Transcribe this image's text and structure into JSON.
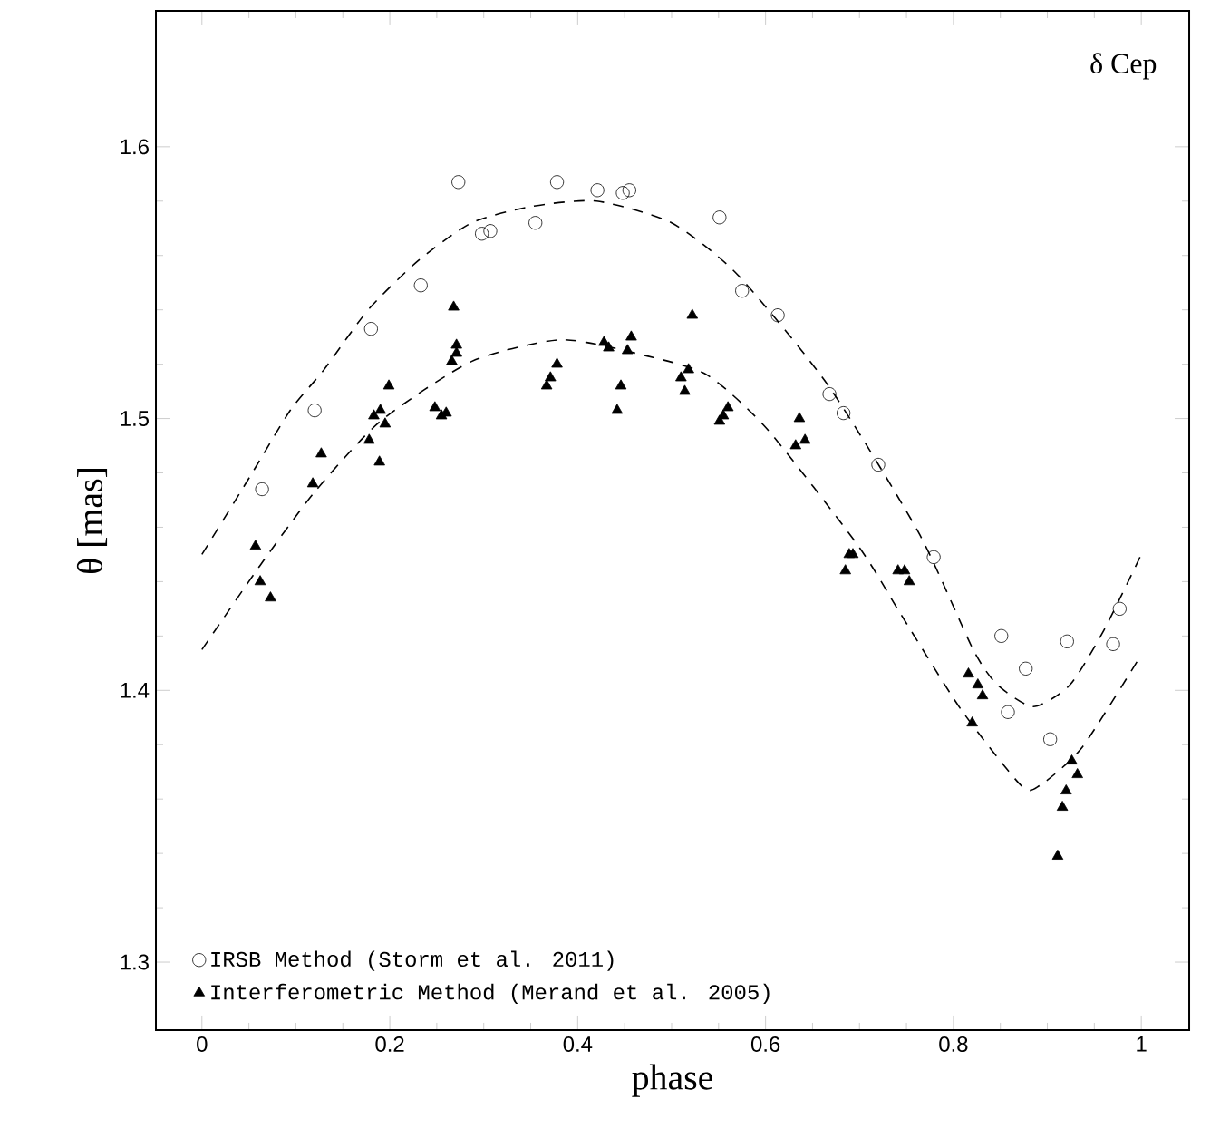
{
  "chart_data": {
    "type": "scatter",
    "xlabel": "phase",
    "ylabel": "θ [mas]",
    "annotations": [
      "δ Cep"
    ],
    "xlim": [
      -0.049,
      1.051
    ],
    "ylim": [
      1.275,
      1.65
    ],
    "xticks": [
      0,
      0.2,
      0.4,
      0.6,
      0.8,
      1
    ],
    "yticks": [
      1.3,
      1.4,
      1.5,
      1.6
    ],
    "legend": "bottom left",
    "series": [
      {
        "name": "IRSB Method (Storm et al. 2011)",
        "marker": "circle",
        "color": "#000000",
        "x": [
          0.064,
          0.12,
          0.18,
          0.233,
          0.273,
          0.298,
          0.307,
          0.355,
          0.378,
          0.421,
          0.448,
          0.455,
          0.551,
          0.575,
          0.613,
          0.668,
          0.683,
          0.72,
          0.779,
          0.851,
          0.877,
          0.858,
          0.903,
          0.921,
          0.97,
          0.977
        ],
        "values": [
          1.474,
          1.503,
          1.533,
          1.549,
          1.587,
          1.568,
          1.569,
          1.572,
          1.587,
          1.584,
          1.583,
          1.584,
          1.574,
          1.547,
          1.538,
          1.509,
          1.502,
          1.483,
          1.449,
          1.42,
          1.408,
          1.392,
          1.382,
          1.418,
          1.417,
          1.43
        ]
      },
      {
        "name": "Interferometric Method (Merand et al. 2005)",
        "marker": "triangle",
        "color": "#000000",
        "x": [
          0.057,
          0.062,
          0.073,
          0.118,
          0.127,
          0.178,
          0.189,
          0.183,
          0.19,
          0.195,
          0.199,
          0.248,
          0.255,
          0.26,
          0.268,
          0.271,
          0.271,
          0.266,
          0.367,
          0.371,
          0.378,
          0.428,
          0.433,
          0.446,
          0.442,
          0.453,
          0.457,
          0.522,
          0.518,
          0.51,
          0.514,
          0.56,
          0.555,
          0.551,
          0.636,
          0.642,
          0.632,
          0.693,
          0.689,
          0.685,
          0.741,
          0.748,
          0.753,
          0.816,
          0.826,
          0.831,
          0.82,
          0.926,
          0.932,
          0.92,
          0.916,
          0.911
        ],
        "values": [
          1.453,
          1.44,
          1.434,
          1.476,
          1.487,
          1.492,
          1.484,
          1.501,
          1.503,
          1.498,
          1.512,
          1.504,
          1.501,
          1.502,
          1.541,
          1.527,
          1.524,
          1.521,
          1.512,
          1.515,
          1.52,
          1.528,
          1.526,
          1.512,
          1.503,
          1.525,
          1.53,
          1.538,
          1.518,
          1.515,
          1.51,
          1.504,
          1.501,
          1.499,
          1.5,
          1.492,
          1.49,
          1.45,
          1.45,
          1.444,
          1.444,
          1.444,
          1.44,
          1.406,
          1.402,
          1.398,
          1.388,
          1.374,
          1.369,
          1.363,
          1.357,
          1.339
        ]
      },
      {
        "type": "line",
        "line_style": "dashed",
        "marker": "none",
        "color": "#000000",
        "x": [
          0,
          0.05,
          0.094,
          0.13,
          0.177,
          0.23,
          0.287,
          0.35,
          0.42,
          0.5,
          0.57,
          0.667,
          0.763,
          0.821,
          0.847,
          0.885,
          0.924,
          0.96,
          1.0
        ],
        "values": [
          1.45,
          1.478,
          1.503,
          1.518,
          1.54,
          1.558,
          1.572,
          1.578,
          1.58,
          1.572,
          1.553,
          1.512,
          1.458,
          1.415,
          1.402,
          1.394,
          1.402,
          1.422,
          1.45
        ]
      },
      {
        "type": "line",
        "line_style": "dashed",
        "marker": "none",
        "color": "#000000",
        "x": [
          0,
          0.062,
          0.12,
          0.19,
          0.287,
          0.383,
          0.474,
          0.538,
          0.602,
          0.699,
          0.744,
          0.808,
          0.872,
          0.892,
          0.937,
          0.998
        ],
        "values": [
          1.415,
          1.446,
          1.473,
          1.499,
          1.521,
          1.529,
          1.523,
          1.516,
          1.496,
          1.453,
          1.428,
          1.393,
          1.365,
          1.365,
          1.379,
          1.412
        ]
      }
    ]
  }
}
